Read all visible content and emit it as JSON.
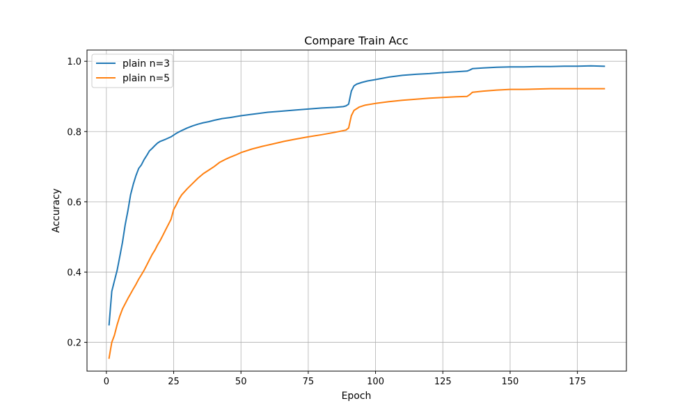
{
  "chart_data": {
    "type": "line",
    "title": "Compare Train Acc",
    "xlabel": "Epoch",
    "ylabel": "Accuracy",
    "xlim": [
      -7.2,
      193.2
    ],
    "ylim": [
      0.118,
      1.032
    ],
    "xticks": [
      0,
      25,
      50,
      75,
      100,
      125,
      150,
      175
    ],
    "yticks": [
      0.2,
      0.4,
      0.6,
      0.8,
      1.0
    ],
    "xtick_labels": [
      "0",
      "25",
      "50",
      "75",
      "100",
      "125",
      "150",
      "175"
    ],
    "ytick_labels": [
      "0.2",
      "0.4",
      "0.6",
      "0.8",
      "1.0"
    ],
    "grid": true,
    "legend_position": "upper-left",
    "series": [
      {
        "name": "plain n=3",
        "color": "#1f77b4",
        "points": [
          [
            1,
            0.25
          ],
          [
            2,
            0.345
          ],
          [
            3,
            0.375
          ],
          [
            4,
            0.405
          ],
          [
            5,
            0.445
          ],
          [
            6,
            0.485
          ],
          [
            7,
            0.535
          ],
          [
            8,
            0.575
          ],
          [
            9,
            0.62
          ],
          [
            10,
            0.65
          ],
          [
            11,
            0.675
          ],
          [
            12,
            0.695
          ],
          [
            13,
            0.705
          ],
          [
            14,
            0.72
          ],
          [
            15,
            0.732
          ],
          [
            16,
            0.745
          ],
          [
            17,
            0.752
          ],
          [
            18,
            0.76
          ],
          [
            19,
            0.767
          ],
          [
            20,
            0.772
          ],
          [
            22,
            0.778
          ],
          [
            24,
            0.785
          ],
          [
            26,
            0.795
          ],
          [
            28,
            0.803
          ],
          [
            30,
            0.81
          ],
          [
            32,
            0.816
          ],
          [
            34,
            0.821
          ],
          [
            36,
            0.825
          ],
          [
            38,
            0.828
          ],
          [
            40,
            0.832
          ],
          [
            43,
            0.837
          ],
          [
            46,
            0.84
          ],
          [
            50,
            0.845
          ],
          [
            55,
            0.85
          ],
          [
            60,
            0.855
          ],
          [
            65,
            0.858
          ],
          [
            70,
            0.861
          ],
          [
            75,
            0.864
          ],
          [
            80,
            0.867
          ],
          [
            85,
            0.869
          ],
          [
            88,
            0.871
          ],
          [
            89,
            0.873
          ],
          [
            90,
            0.878
          ],
          [
            91,
            0.915
          ],
          [
            92,
            0.93
          ],
          [
            93,
            0.935
          ],
          [
            95,
            0.94
          ],
          [
            97,
            0.944
          ],
          [
            100,
            0.948
          ],
          [
            105,
            0.955
          ],
          [
            110,
            0.96
          ],
          [
            115,
            0.963
          ],
          [
            120,
            0.965
          ],
          [
            125,
            0.968
          ],
          [
            130,
            0.97
          ],
          [
            134,
            0.972
          ],
          [
            135,
            0.975
          ],
          [
            136,
            0.979
          ],
          [
            140,
            0.981
          ],
          [
            145,
            0.983
          ],
          [
            150,
            0.984
          ],
          [
            155,
            0.984
          ],
          [
            160,
            0.985
          ],
          [
            165,
            0.985
          ],
          [
            170,
            0.986
          ],
          [
            175,
            0.986
          ],
          [
            180,
            0.987
          ],
          [
            185,
            0.986
          ]
        ]
      },
      {
        "name": "plain n=5",
        "color": "#ff7f0e",
        "points": [
          [
            1,
            0.155
          ],
          [
            2,
            0.2
          ],
          [
            3,
            0.22
          ],
          [
            4,
            0.25
          ],
          [
            5,
            0.275
          ],
          [
            6,
            0.295
          ],
          [
            7,
            0.31
          ],
          [
            8,
            0.325
          ],
          [
            9,
            0.338
          ],
          [
            10,
            0.352
          ],
          [
            11,
            0.365
          ],
          [
            12,
            0.38
          ],
          [
            13,
            0.392
          ],
          [
            14,
            0.405
          ],
          [
            15,
            0.42
          ],
          [
            16,
            0.435
          ],
          [
            17,
            0.45
          ],
          [
            18,
            0.462
          ],
          [
            19,
            0.477
          ],
          [
            20,
            0.49
          ],
          [
            21,
            0.505
          ],
          [
            22,
            0.52
          ],
          [
            23,
            0.535
          ],
          [
            24,
            0.55
          ],
          [
            25,
            0.578
          ],
          [
            26,
            0.592
          ],
          [
            27,
            0.608
          ],
          [
            28,
            0.62
          ],
          [
            30,
            0.637
          ],
          [
            32,
            0.652
          ],
          [
            34,
            0.667
          ],
          [
            36,
            0.68
          ],
          [
            38,
            0.69
          ],
          [
            40,
            0.7
          ],
          [
            42,
            0.712
          ],
          [
            44,
            0.72
          ],
          [
            46,
            0.727
          ],
          [
            48,
            0.733
          ],
          [
            50,
            0.74
          ],
          [
            54,
            0.75
          ],
          [
            58,
            0.758
          ],
          [
            62,
            0.765
          ],
          [
            66,
            0.772
          ],
          [
            70,
            0.778
          ],
          [
            75,
            0.785
          ],
          [
            80,
            0.791
          ],
          [
            85,
            0.798
          ],
          [
            89,
            0.804
          ],
          [
            90,
            0.81
          ],
          [
            91,
            0.845
          ],
          [
            92,
            0.86
          ],
          [
            94,
            0.87
          ],
          [
            96,
            0.875
          ],
          [
            100,
            0.88
          ],
          [
            105,
            0.885
          ],
          [
            110,
            0.889
          ],
          [
            115,
            0.892
          ],
          [
            120,
            0.895
          ],
          [
            125,
            0.897
          ],
          [
            130,
            0.899
          ],
          [
            134,
            0.9
          ],
          [
            135,
            0.905
          ],
          [
            136,
            0.912
          ],
          [
            140,
            0.915
          ],
          [
            145,
            0.918
          ],
          [
            150,
            0.92
          ],
          [
            155,
            0.92
          ],
          [
            160,
            0.921
          ],
          [
            165,
            0.922
          ],
          [
            170,
            0.922
          ],
          [
            175,
            0.922
          ],
          [
            180,
            0.922
          ],
          [
            185,
            0.922
          ]
        ]
      }
    ]
  }
}
